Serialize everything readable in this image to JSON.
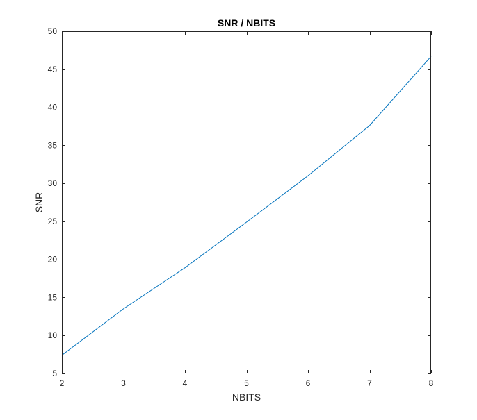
{
  "chart_data": {
    "type": "line",
    "title": "SNR / NBITS",
    "xlabel": "NBITS",
    "ylabel": "SNR",
    "xlim": [
      2,
      8
    ],
    "ylim": [
      5,
      50
    ],
    "xticks": [
      2,
      3,
      4,
      5,
      6,
      7,
      8
    ],
    "yticks": [
      5,
      10,
      15,
      20,
      25,
      30,
      35,
      40,
      45,
      50
    ],
    "grid": false,
    "series": [
      {
        "color": "#0072BD",
        "x": [
          2,
          3,
          4,
          5,
          6,
          7,
          8
        ],
        "y": [
          7.4,
          13.5,
          18.9,
          24.9,
          31.0,
          37.6,
          46.7
        ]
      }
    ]
  }
}
